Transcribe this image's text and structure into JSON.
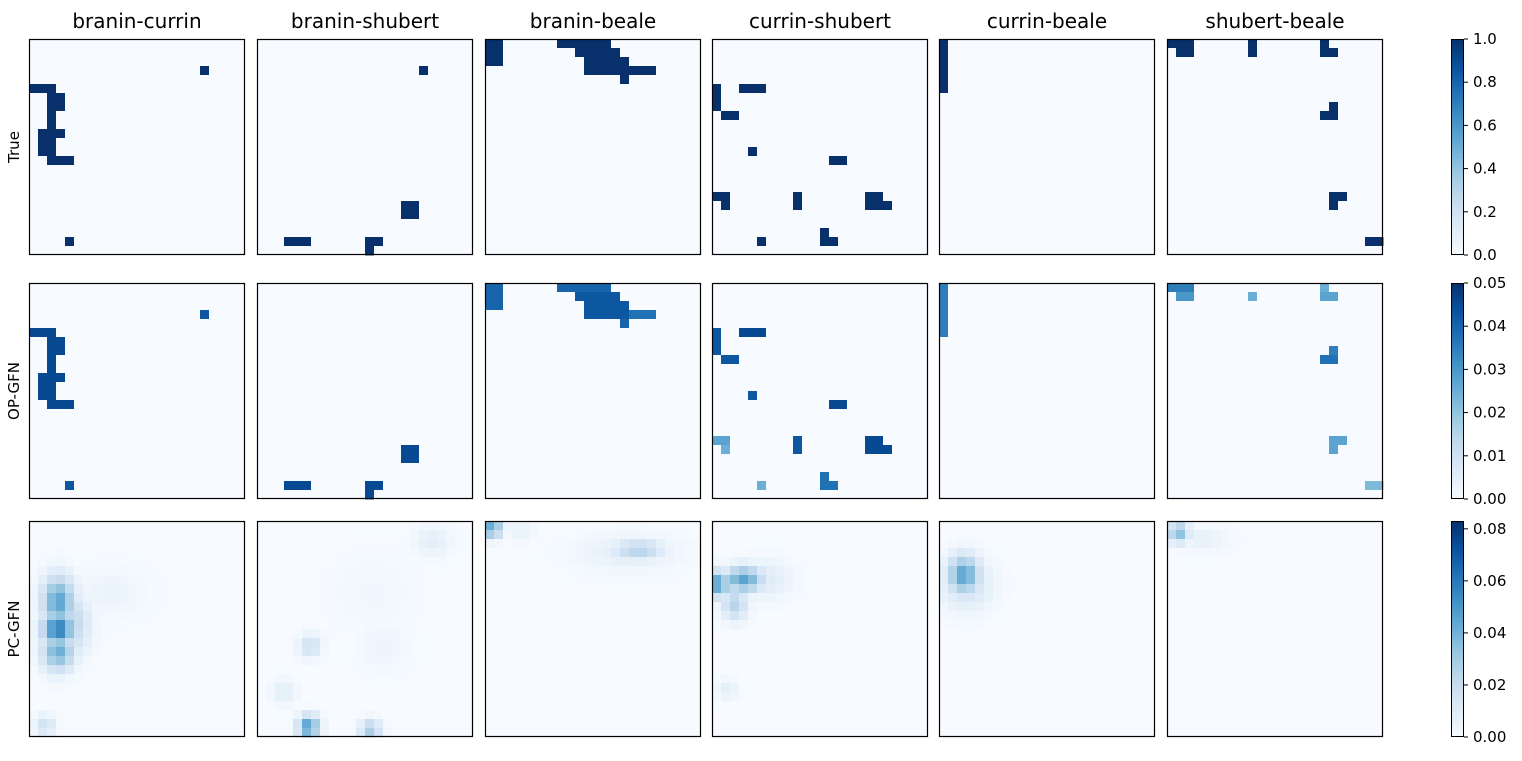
{
  "chart_data": {
    "type": "heatmap",
    "colormap": "Blues",
    "grid_resolution": 24,
    "columns": [
      "branin-currin",
      "branin-shubert",
      "branin-beale",
      "currin-shubert",
      "currin-beale",
      "shubert-beale"
    ],
    "rows": [
      {
        "label": "True",
        "colorbar": {
          "min": 0.0,
          "max": 1.0,
          "ticks": [
            "0.0",
            "0.2",
            "0.4",
            "0.6",
            "0.8",
            "1.0"
          ]
        },
        "panels": [
          {
            "blobs": [
              [
                19,
                3,
                1,
                1,
                1
              ],
              [
                0,
                5,
                3,
                1,
                1
              ],
              [
                2,
                6,
                2,
                1,
                1
              ],
              [
                2,
                7,
                2,
                1,
                1
              ],
              [
                2,
                8,
                1,
                1,
                1
              ],
              [
                2,
                9,
                1,
                1,
                1
              ],
              [
                1,
                10,
                3,
                1,
                1
              ],
              [
                1,
                11,
                2,
                1,
                1
              ],
              [
                1,
                12,
                2,
                1,
                1
              ],
              [
                2,
                13,
                3,
                1,
                1
              ],
              [
                4,
                22,
                1,
                1,
                1
              ]
            ]
          },
          {
            "blobs": [
              [
                18,
                3,
                1,
                1,
                1
              ],
              [
                16,
                18,
                2,
                1,
                1
              ],
              [
                16,
                19,
                2,
                1,
                1
              ],
              [
                3,
                22,
                3,
                1,
                1
              ],
              [
                12,
                22,
                2,
                1,
                1
              ],
              [
                12,
                23,
                1,
                1,
                1
              ]
            ]
          },
          {
            "blobs": [
              [
                0,
                0,
                2,
                3,
                1
              ],
              [
                8,
                0,
                6,
                1,
                1
              ],
              [
                10,
                1,
                5,
                1,
                1
              ],
              [
                11,
                2,
                5,
                2,
                1
              ],
              [
                14,
                3,
                5,
                1,
                1
              ],
              [
                15,
                4,
                1,
                1,
                1
              ]
            ]
          },
          {
            "blobs": [
              [
                0,
                5,
                1,
                3,
                1
              ],
              [
                3,
                5,
                3,
                1,
                1
              ],
              [
                1,
                8,
                2,
                1,
                1
              ],
              [
                4,
                12,
                1,
                1,
                1
              ],
              [
                13,
                13,
                2,
                1,
                1
              ],
              [
                0,
                17,
                2,
                1,
                1
              ],
              [
                1,
                18,
                1,
                1,
                1
              ],
              [
                9,
                17,
                1,
                2,
                1
              ],
              [
                17,
                17,
                2,
                1,
                1
              ],
              [
                17,
                18,
                3,
                1,
                1
              ],
              [
                5,
                22,
                1,
                1,
                1
              ],
              [
                12,
                21,
                1,
                1,
                1
              ],
              [
                12,
                22,
                2,
                1,
                1
              ]
            ]
          },
          {
            "blobs": [
              [
                0,
                0,
                1,
                6,
                1
              ]
            ]
          },
          {
            "blobs": [
              [
                0,
                0,
                3,
                1,
                1
              ],
              [
                1,
                1,
                2,
                1,
                1
              ],
              [
                9,
                0,
                1,
                2,
                1
              ],
              [
                17,
                0,
                1,
                2,
                1
              ],
              [
                17,
                1,
                2,
                1,
                1
              ],
              [
                17,
                8,
                2,
                1,
                1
              ],
              [
                18,
                7,
                1,
                1,
                1
              ],
              [
                18,
                17,
                2,
                1,
                1
              ],
              [
                18,
                18,
                1,
                1,
                1
              ],
              [
                22,
                22,
                2,
                1,
                1
              ]
            ]
          }
        ]
      },
      {
        "label": "OP-GFN",
        "colorbar": {
          "min": 0.0,
          "max": 0.05,
          "ticks": [
            "0.00",
            "0.01",
            "0.02",
            "0.03",
            "0.04",
            "0.05"
          ]
        },
        "panels": [
          {
            "blobs": [
              [
                19,
                3,
                1,
                1,
                0.85
              ],
              [
                0,
                5,
                3,
                1,
                0.9
              ],
              [
                2,
                6,
                2,
                1,
                0.9
              ],
              [
                2,
                7,
                2,
                1,
                0.9
              ],
              [
                2,
                8,
                1,
                1,
                0.9
              ],
              [
                2,
                9,
                1,
                1,
                0.9
              ],
              [
                1,
                10,
                3,
                1,
                0.9
              ],
              [
                1,
                11,
                2,
                1,
                0.9
              ],
              [
                1,
                12,
                2,
                1,
                0.9
              ],
              [
                2,
                13,
                3,
                1,
                0.9
              ],
              [
                4,
                22,
                1,
                1,
                0.85
              ]
            ]
          },
          {
            "blobs": [
              [
                16,
                18,
                2,
                1,
                0.9
              ],
              [
                16,
                19,
                2,
                1,
                0.9
              ],
              [
                3,
                22,
                3,
                1,
                0.9
              ],
              [
                12,
                22,
                2,
                1,
                0.9
              ],
              [
                12,
                23,
                1,
                1,
                0.9
              ]
            ]
          },
          {
            "blobs": [
              [
                0,
                0,
                2,
                3,
                0.8
              ],
              [
                8,
                0,
                6,
                1,
                0.8
              ],
              [
                10,
                1,
                5,
                1,
                0.85
              ],
              [
                11,
                2,
                5,
                2,
                0.85
              ],
              [
                14,
                3,
                5,
                1,
                0.75
              ],
              [
                15,
                4,
                1,
                1,
                0.8
              ]
            ]
          },
          {
            "blobs": [
              [
                0,
                5,
                1,
                3,
                0.85
              ],
              [
                3,
                5,
                3,
                1,
                0.9
              ],
              [
                1,
                8,
                2,
                1,
                0.85
              ],
              [
                4,
                12,
                1,
                1,
                0.85
              ],
              [
                13,
                13,
                2,
                1,
                0.9
              ],
              [
                0,
                17,
                2,
                1,
                0.55
              ],
              [
                1,
                18,
                1,
                1,
                0.5
              ],
              [
                9,
                17,
                1,
                2,
                0.85
              ],
              [
                17,
                17,
                2,
                1,
                0.9
              ],
              [
                17,
                18,
                3,
                1,
                0.9
              ],
              [
                5,
                22,
                1,
                1,
                0.5
              ],
              [
                12,
                21,
                1,
                1,
                0.75
              ],
              [
                12,
                22,
                2,
                1,
                0.75
              ]
            ]
          },
          {
            "blobs": [
              [
                0,
                0,
                1,
                6,
                0.7
              ]
            ]
          },
          {
            "blobs": [
              [
                0,
                0,
                3,
                1,
                0.7
              ],
              [
                1,
                1,
                2,
                1,
                0.6
              ],
              [
                9,
                1,
                1,
                1,
                0.5
              ],
              [
                17,
                0,
                1,
                2,
                0.5
              ],
              [
                17,
                1,
                2,
                1,
                0.55
              ],
              [
                17,
                8,
                2,
                1,
                0.75
              ],
              [
                18,
                7,
                1,
                1,
                0.7
              ],
              [
                18,
                17,
                2,
                1,
                0.55
              ],
              [
                18,
                18,
                1,
                1,
                0.55
              ],
              [
                22,
                22,
                2,
                1,
                0.45
              ]
            ]
          }
        ]
      },
      {
        "label": "PC-GFN",
        "colorbar": {
          "min": 0.0,
          "max": 0.083,
          "ticks": [
            "0.00",
            "0.02",
            "0.04",
            "0.06",
            "0.08"
          ]
        },
        "panels": [
          {
            "blobs": [
              [
                2,
                7,
                2.5,
                4,
                0.55
              ],
              [
                2,
                11,
                2.5,
                2,
                0.75
              ],
              [
                2,
                13,
                2.5,
                3,
                0.5
              ],
              [
                3,
                9,
                3,
                5,
                0.3
              ],
              [
                1,
                22,
                1.5,
                1.5,
                0.2
              ],
              [
                6,
                6,
                6,
                4,
                0.06
              ]
            ]
          },
          {
            "blobs": [
              [
                5,
                13,
                1.8,
                1.8,
                0.2
              ],
              [
                5,
                22,
                1.5,
                1.8,
                0.6
              ],
              [
                12,
                22.5,
                1.2,
                1.5,
                0.35
              ],
              [
                18,
                1,
                3,
                2.5,
                0.1
              ],
              [
                2,
                18,
                2,
                2,
                0.1
              ],
              [
                12,
                12,
                4,
                4,
                0.05
              ],
              [
                10,
                5,
                6,
                6,
                0.04
              ]
            ]
          },
          {
            "blobs": [
              [
                15,
                2.5,
                4,
                1.5,
                0.3
              ],
              [
                12,
                2,
                8,
                3,
                0.1
              ],
              [
                0,
                0,
                1.5,
                1.5,
                0.55
              ],
              [
                3,
                0.5,
                2,
                1,
                0.08
              ]
            ]
          },
          {
            "blobs": [
              [
                2,
                5.5,
                3,
                2,
                0.55
              ],
              [
                0,
                6,
                1.5,
                2,
                0.6
              ],
              [
                1.5,
                8,
                2,
                2.5,
                0.3
              ],
              [
                4,
                5,
                4,
                3,
                0.12
              ],
              [
                1,
                18,
                1.5,
                1.5,
                0.1
              ]
            ]
          },
          {
            "blobs": [
              [
                1.5,
                4.5,
                2.5,
                3,
                0.55
              ],
              [
                1,
                5,
                4,
                4,
                0.2
              ]
            ]
          },
          {
            "blobs": [
              [
                0.5,
                0.5,
                1.5,
                1.5,
                0.45
              ],
              [
                2,
                1,
                4,
                2,
                0.08
              ]
            ]
          }
        ]
      }
    ]
  }
}
